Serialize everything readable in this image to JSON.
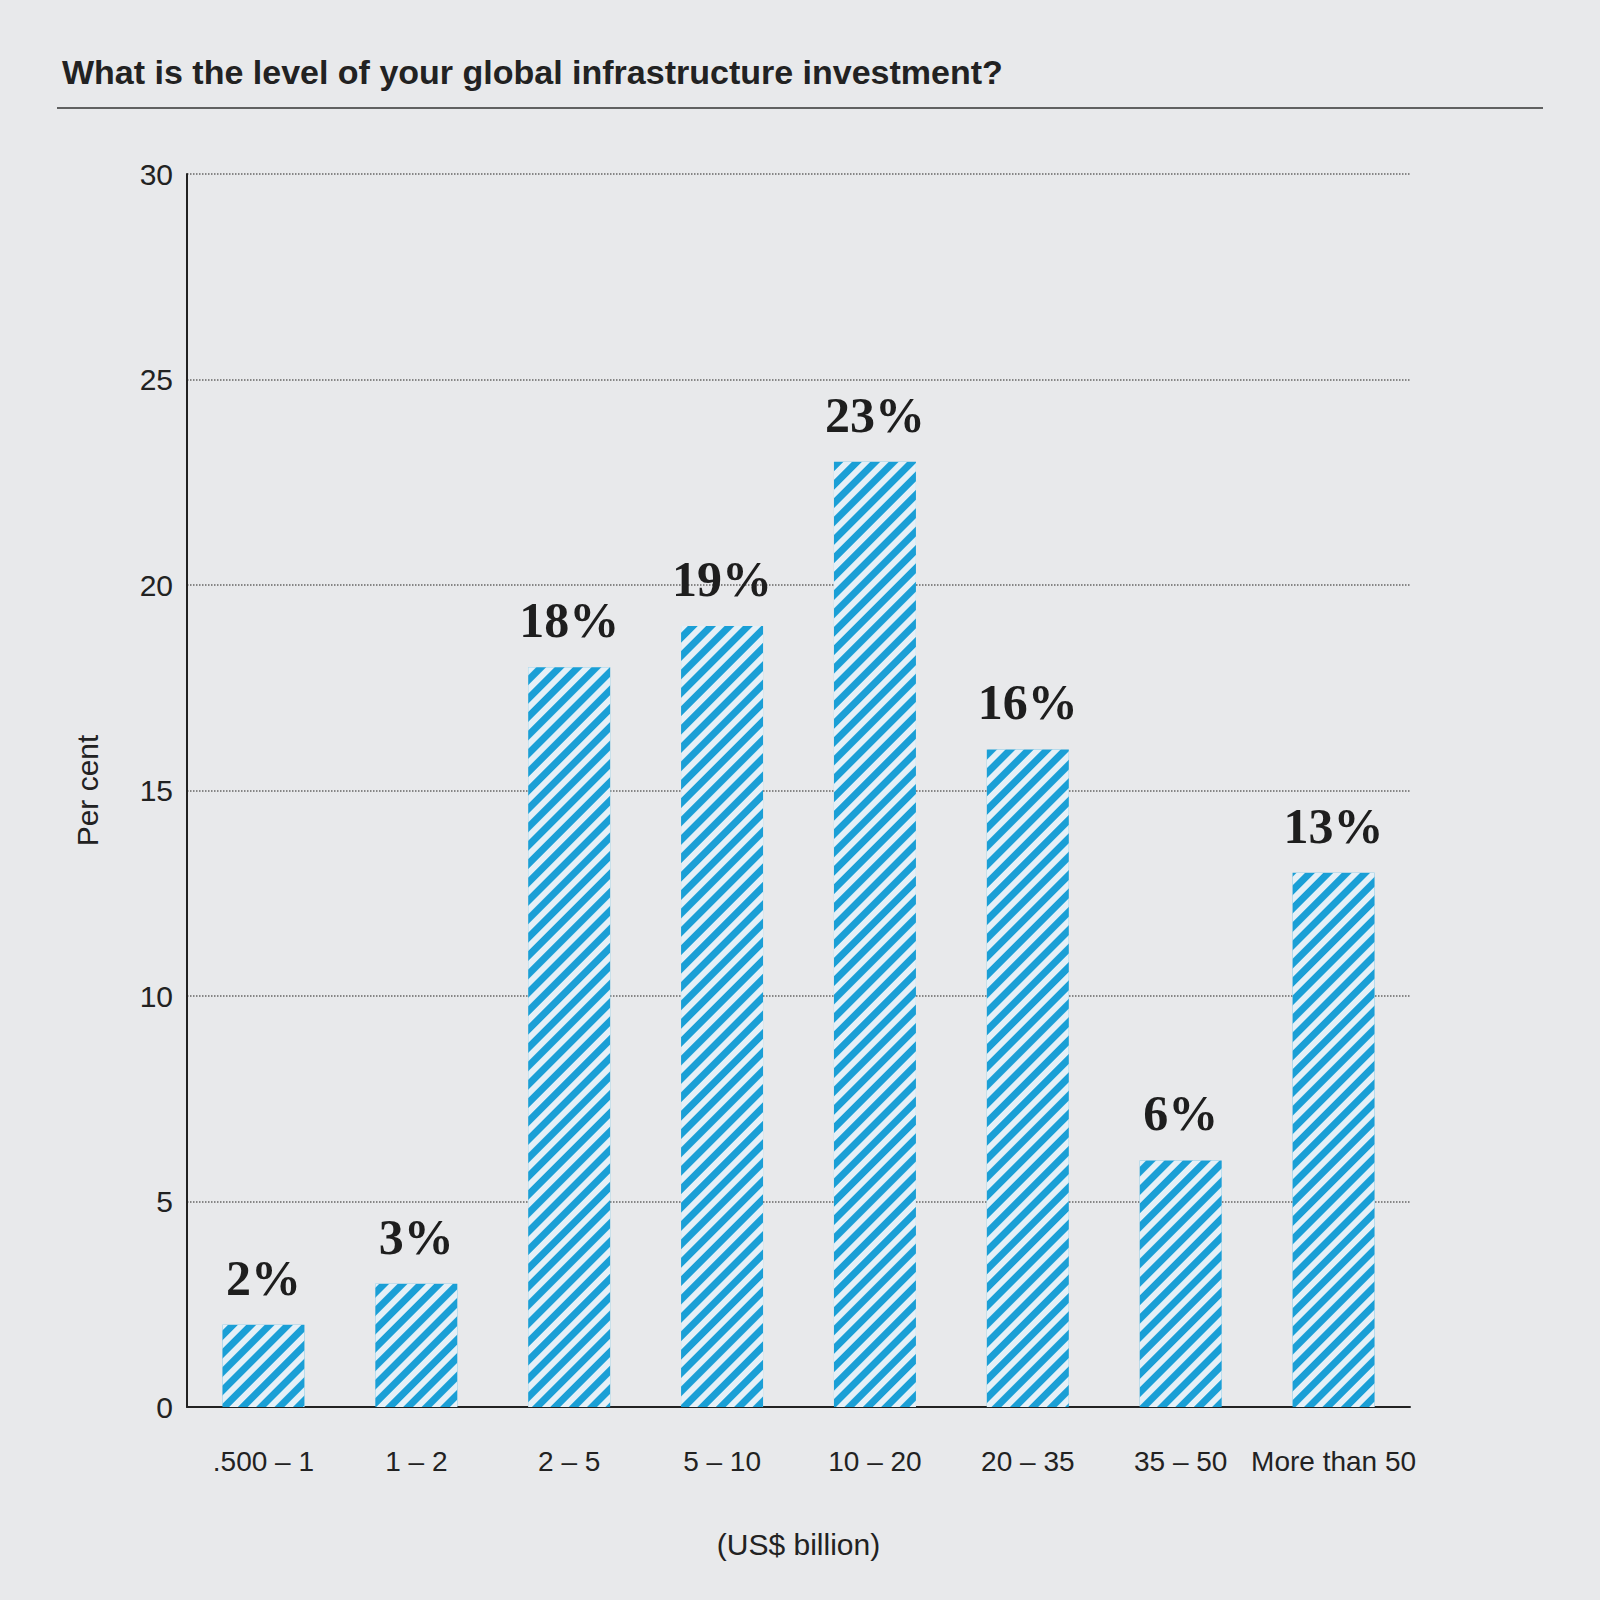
{
  "chart_data": {
    "type": "bar",
    "title": "What is the level of your global infrastructure investment?",
    "x_label": "(US$ billion)",
    "y_label": "Per cent",
    "categories": [
      ".500 – 1",
      "1 – 2",
      "2 – 5",
      "5 – 10",
      "10 – 20",
      "20 – 35",
      "35 – 50",
      "More than 50"
    ],
    "values": [
      2,
      3,
      18,
      19,
      23,
      16,
      6,
      13
    ],
    "value_labels": [
      "2%",
      "3%",
      "18%",
      "19%",
      "23%",
      "16%",
      "6%",
      "13%"
    ],
    "color": "#1a9fd6",
    "ylim": [
      0,
      30
    ],
    "yticks": [
      0,
      5,
      10,
      15,
      20,
      25,
      30
    ],
    "grid": true,
    "data_labels": true
  }
}
